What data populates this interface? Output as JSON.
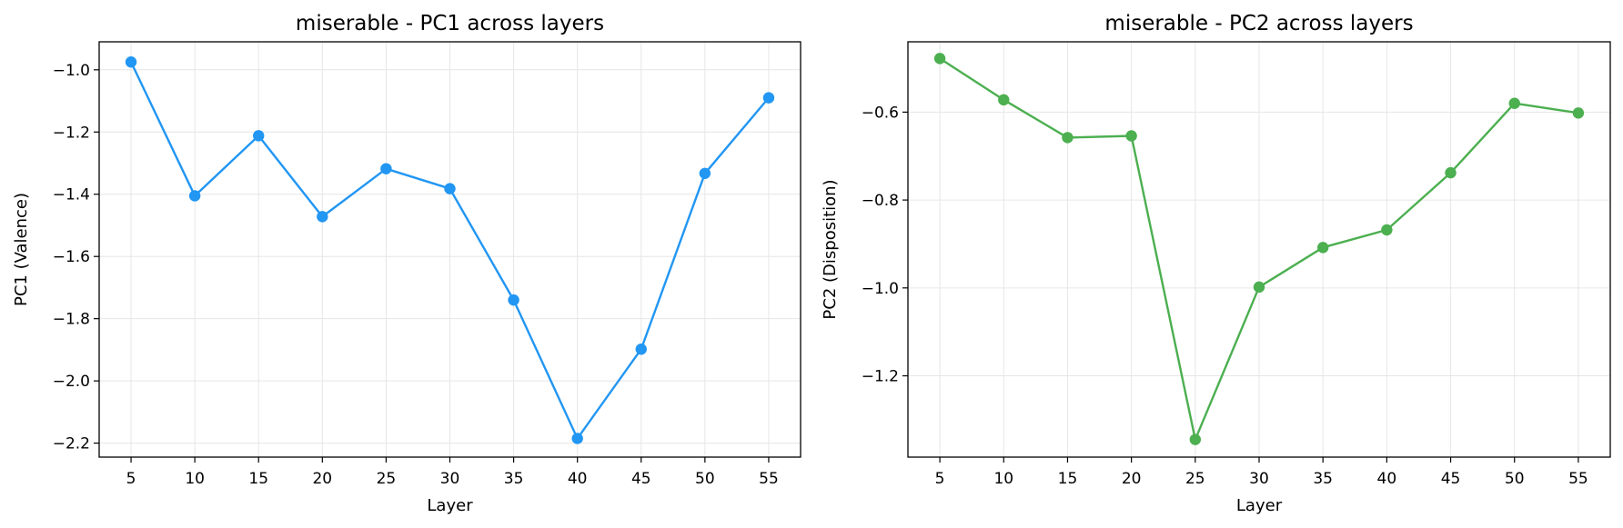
{
  "chart_data": [
    {
      "type": "line",
      "title": "miserable - PC1 across layers",
      "xlabel": "Layer",
      "ylabel": "PC1 (Valence)",
      "x": [
        5,
        10,
        15,
        20,
        25,
        30,
        35,
        40,
        45,
        50,
        55
      ],
      "xticks": [
        "5",
        "10",
        "15",
        "20",
        "25",
        "30",
        "35",
        "40",
        "45",
        "50",
        "55"
      ],
      "xlim": [
        2.5,
        57.5
      ],
      "ylim": [
        -2.245,
        -0.91
      ],
      "yticks": [
        -2.2,
        -2.0,
        -1.8,
        -1.6,
        -1.4,
        -1.2,
        -1.0
      ],
      "ytick_labels": [
        "−2.2",
        "−2.0",
        "−1.8",
        "−1.6",
        "−1.4",
        "−1.2",
        "−1.0"
      ],
      "grid": true,
      "series": [
        {
          "color": "#2196F3",
          "marker": "circle",
          "values": [
            -0.975,
            -1.405,
            -1.212,
            -1.472,
            -1.318,
            -1.382,
            -1.74,
            -2.185,
            -1.898,
            -1.333,
            -1.09
          ]
        }
      ]
    },
    {
      "type": "line",
      "title": "miserable - PC2 across layers",
      "xlabel": "Layer",
      "ylabel": "PC2 (Disposition)",
      "x": [
        5,
        10,
        15,
        20,
        25,
        30,
        35,
        40,
        45,
        50,
        55
      ],
      "xticks": [
        "5",
        "10",
        "15",
        "20",
        "25",
        "30",
        "35",
        "40",
        "45",
        "50",
        "55"
      ],
      "xlim": [
        2.5,
        57.5
      ],
      "ylim": [
        -1.385,
        -0.44
      ],
      "yticks": [
        -1.2,
        -1.0,
        -0.8,
        -0.6
      ],
      "ytick_labels": [
        "−1.2",
        "−1.0",
        "−0.8",
        "−0.6"
      ],
      "grid": true,
      "series": [
        {
          "color": "#4CAF50",
          "marker": "circle",
          "values": [
            -0.478,
            -0.572,
            -0.658,
            -0.654,
            -1.345,
            -0.998,
            -0.908,
            -0.868,
            -0.738,
            -0.58,
            -0.602
          ]
        }
      ]
    }
  ]
}
